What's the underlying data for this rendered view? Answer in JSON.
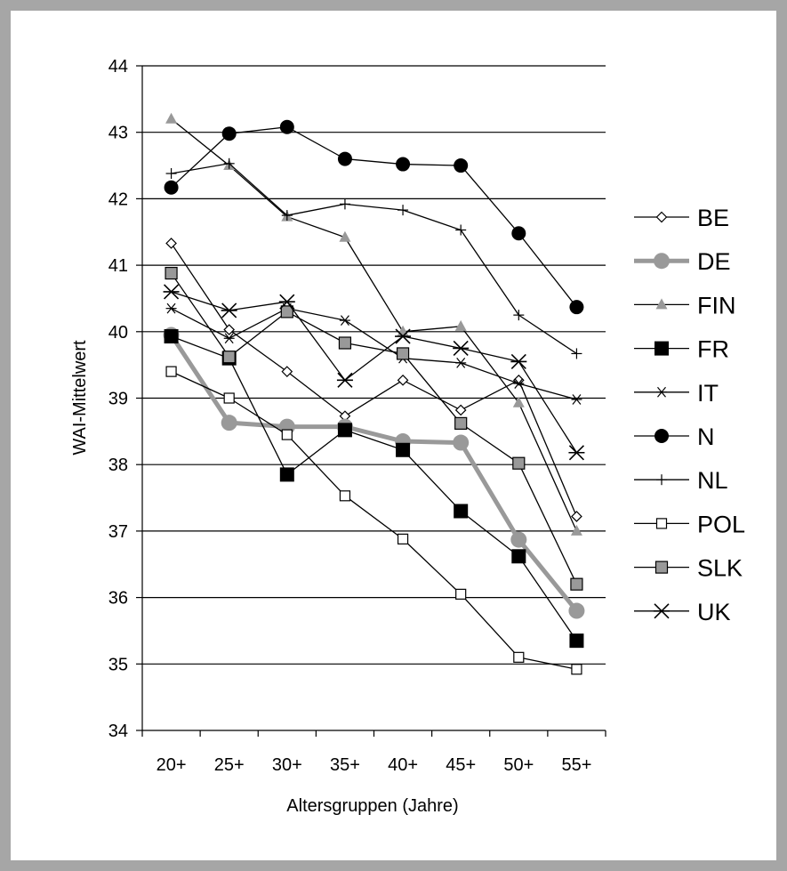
{
  "chart_data": {
    "type": "line",
    "title": "",
    "xlabel": "Altersgruppen (Jahre)",
    "ylabel": "WAI-Mittelwert",
    "categories": [
      "20+",
      "25+",
      "30+",
      "35+",
      "40+",
      "45+",
      "50+",
      "55+"
    ],
    "ylim": [
      34,
      44
    ],
    "yticks": [
      "34",
      "35",
      "36",
      "37",
      "38",
      "39",
      "40",
      "41",
      "42",
      "43",
      "44"
    ],
    "grid": "horizontal",
    "legend": "right",
    "series": [
      {
        "name": "BE",
        "marker": "diamond-open",
        "color": "#000000",
        "values": [
          41.33,
          40.03,
          39.4,
          38.73,
          39.27,
          38.82,
          39.27,
          37.22
        ]
      },
      {
        "name": "DE",
        "marker": "circle-filled",
        "color": "#999999",
        "values": [
          39.95,
          38.63,
          38.57,
          38.57,
          38.35,
          38.33,
          36.87,
          35.8
        ]
      },
      {
        "name": "FIN",
        "marker": "triangle-filled",
        "color": "#999999",
        "values": [
          43.2,
          42.5,
          41.73,
          41.42,
          40.0,
          40.08,
          38.93,
          37.0
        ]
      },
      {
        "name": "FR",
        "marker": "square-filled",
        "color": "#000000",
        "values": [
          39.93,
          39.6,
          37.85,
          38.52,
          38.22,
          37.3,
          36.62,
          35.35
        ]
      },
      {
        "name": "IT",
        "marker": "star",
        "color": "#000000",
        "values": [
          40.35,
          39.9,
          40.35,
          40.17,
          39.6,
          39.53,
          39.22,
          38.98
        ]
      },
      {
        "name": "N",
        "marker": "circle-filled",
        "color": "#000000",
        "values": [
          42.17,
          42.98,
          43.08,
          42.6,
          42.52,
          42.5,
          41.48,
          40.37
        ]
      },
      {
        "name": "NL",
        "marker": "plus",
        "color": "#000000",
        "values": [
          42.38,
          42.53,
          41.75,
          41.92,
          41.83,
          41.53,
          40.25,
          39.67
        ]
      },
      {
        "name": "POL",
        "marker": "square-open",
        "color": "#000000",
        "values": [
          39.4,
          39.0,
          38.45,
          37.53,
          36.88,
          36.05,
          35.1,
          34.92
        ]
      },
      {
        "name": "SLK",
        "marker": "square-gray",
        "color": "#000000",
        "values": [
          40.88,
          39.62,
          40.3,
          39.83,
          39.67,
          38.62,
          38.02,
          36.2
        ]
      },
      {
        "name": "UK",
        "marker": "x-star",
        "color": "#000000",
        "values": [
          40.6,
          40.32,
          40.45,
          39.27,
          39.93,
          39.75,
          39.55,
          38.18
        ]
      }
    ]
  }
}
